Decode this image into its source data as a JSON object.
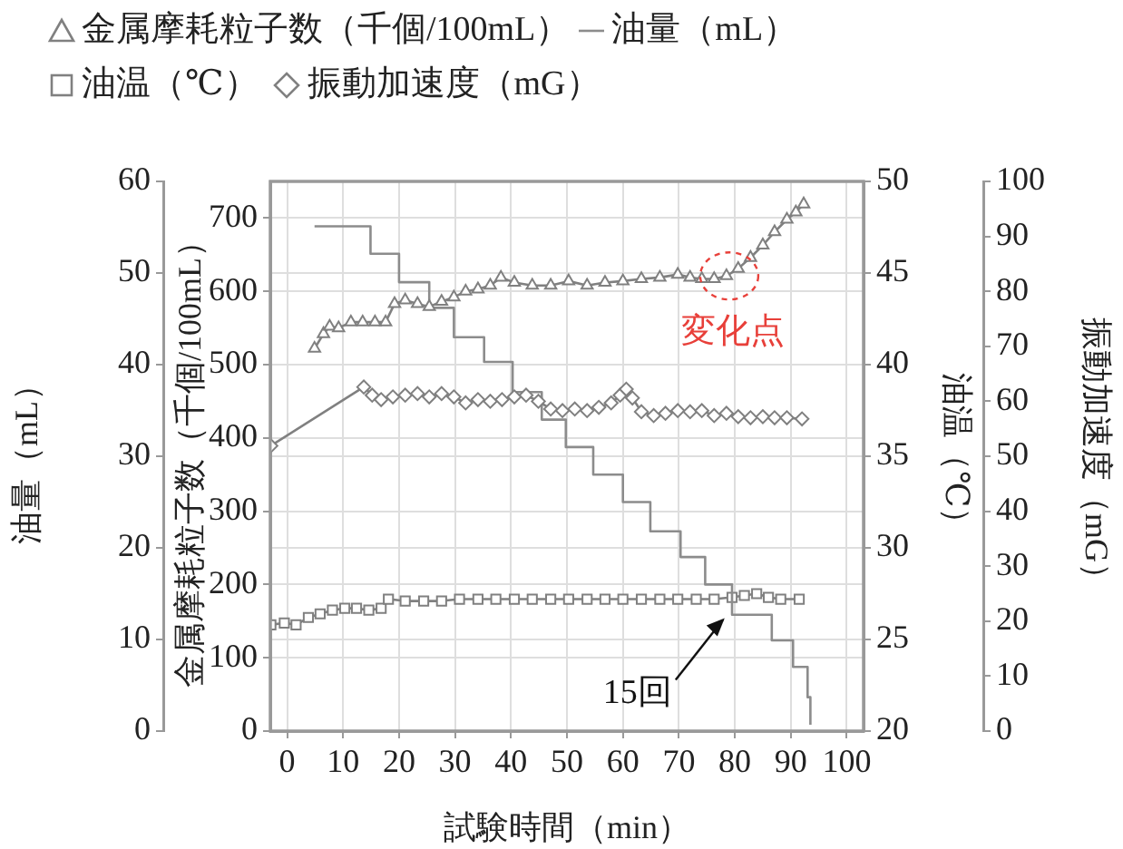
{
  "chart_data": [
    {
      "type": "line",
      "xlabel": "試験時間（min）",
      "ylabel": "金属摩耗粒子数（千個/100mL）",
      "y2label": "油量（mL）",
      "y3label": "油温（℃）",
      "xlim": [
        -3,
        103
      ],
      "xticks": [
        0,
        10,
        20,
        30,
        40,
        50,
        60,
        70,
        80,
        90,
        100
      ],
      "ylim": [
        0,
        750
      ],
      "yticks": [
        0,
        100,
        200,
        300,
        400,
        500,
        600,
        700
      ],
      "y2lim": [
        0,
        60
      ],
      "y2ticks": [
        0,
        10,
        20,
        30,
        40,
        50,
        60
      ],
      "y3lim": [
        20,
        50
      ],
      "y3ticks": [
        20,
        25,
        30,
        35,
        40,
        45,
        50
      ],
      "grid": true,
      "legend": "top left",
      "line_style": "solid",
      "annotations": [
        {
          "text": "変化点",
          "x": 79,
          "y": 621
        },
        {
          "text": "15回",
          "x": 78.5,
          "y": 159
        }
      ],
      "series": [
        {
          "name": "金属摩耗粒子数（千個/100mL）",
          "marker": "triangle",
          "color": "#808080",
          "x": [
            4.9,
            6.5,
            7.6,
            9.2,
            11.4,
            13.5,
            15.7,
            17.6,
            19.2,
            21.1,
            23.3,
            25.4,
            27.6,
            29.8,
            31.9,
            34.1,
            36.3,
            38.2,
            40.6,
            43.8,
            47.1,
            50.3,
            53.6,
            56.8,
            60,
            63.3,
            66.6,
            69.8,
            72,
            74.1,
            76.3,
            78.5,
            80.6,
            82.8,
            85,
            87.1,
            89.3,
            90.9,
            92.3
          ],
          "values": [
            522,
            542,
            552,
            550,
            558,
            558,
            558,
            558,
            583,
            588,
            583,
            579,
            586,
            592,
            600,
            603,
            608,
            619,
            612,
            608,
            608,
            614,
            608,
            612,
            614,
            617,
            619,
            623,
            619,
            617,
            617,
            621,
            631,
            646,
            663,
            681,
            698,
            708,
            719
          ]
        },
        {
          "name": "油量（mL）",
          "type": "step",
          "axis": "y2",
          "marker": "none",
          "color": "#8c8c8c",
          "x": [
            4.9,
            14.9,
            20,
            25.4,
            29.8,
            35.2,
            40.3,
            45.5,
            49.8,
            54.7,
            60,
            64.9,
            70.3,
            74.7,
            79.5,
            86.6,
            90.4,
            93,
            93.5
          ],
          "values": [
            55.1,
            52.1,
            49,
            46.2,
            43,
            40.3,
            37,
            34,
            31,
            28,
            25,
            21.8,
            19,
            16,
            12.7,
            9.9,
            7,
            3.7,
            0.7
          ]
        },
        {
          "name": "油温（℃）",
          "axis": "y3",
          "marker": "square",
          "color": "#808080",
          "x": [
            -2.9,
            -0.5,
            1.6,
            3.8,
            5.9,
            8.1,
            10.3,
            12.4,
            14.6,
            16.8,
            18.1,
            21.1,
            24.4,
            27.6,
            30.8,
            34.1,
            37.3,
            40.6,
            43.8,
            47.1,
            50.3,
            53.6,
            56.8,
            60,
            63.3,
            66.6,
            69.8,
            73.1,
            76.3,
            79.5,
            81.7,
            83.9,
            86,
            88.2,
            91.5
          ],
          "values": [
            25.8,
            25.9,
            25.8,
            26.2,
            26.4,
            26.6,
            26.7,
            26.7,
            26.6,
            26.7,
            27.2,
            27.1,
            27.1,
            27.1,
            27.2,
            27.2,
            27.2,
            27.2,
            27.2,
            27.2,
            27.2,
            27.2,
            27.2,
            27.2,
            27.2,
            27.2,
            27.2,
            27.2,
            27.2,
            27.3,
            27.4,
            27.5,
            27.3,
            27.2,
            27.2
          ]
        }
      ]
    },
    {
      "type": "line",
      "ylabel": "振動加速度（mG）",
      "xlim": [
        -3,
        103
      ],
      "ylim": [
        0,
        100
      ],
      "yticks": [
        0,
        10,
        20,
        30,
        40,
        50,
        60,
        70,
        80,
        90,
        100
      ],
      "tick_labels": "y",
      "legend": "top left",
      "line_style": "solid",
      "series": [
        {
          "name": "振動加速度（mG）",
          "marker": "diamond",
          "color": "#808080",
          "x": [
            -2.9,
            13.7,
            15.2,
            16.8,
            18.9,
            21.1,
            23.3,
            25.4,
            27.6,
            29.8,
            31.9,
            34.1,
            36.3,
            38.4,
            40.6,
            42.7,
            44.9,
            47.1,
            49.2,
            51.4,
            53.6,
            55.7,
            57.9,
            59.5,
            60.6,
            61.7,
            63.3,
            65.5,
            67.6,
            69.8,
            72,
            74.1,
            76.3,
            78.5,
            80.6,
            82.8,
            85,
            87.1,
            89.3,
            92
          ],
          "values": [
            51.9,
            62.6,
            61.1,
            60.3,
            60.8,
            61.1,
            61.4,
            60.8,
            61.4,
            60.8,
            59.7,
            60.3,
            60,
            60.3,
            60.8,
            61.1,
            60,
            58.6,
            58.3,
            58.6,
            58.3,
            58.9,
            59.7,
            61.1,
            62.2,
            60.6,
            58.1,
            57.4,
            57.8,
            58.3,
            58.1,
            58.3,
            57.4,
            57.8,
            57.2,
            57,
            57.2,
            57,
            57,
            56.8
          ]
        }
      ]
    }
  ]
}
